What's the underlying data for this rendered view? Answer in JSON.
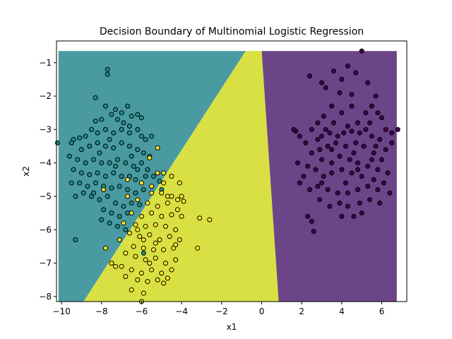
{
  "chart_data": {
    "type": "scatter",
    "title": "Decision Boundary of Multinomial Logistic Regression",
    "xlabel": "x1",
    "ylabel": "x2",
    "xlim": [
      -10.25,
      7.25
    ],
    "ylim": [
      -8.15,
      -0.35
    ],
    "xticks": [
      "−10",
      "−8",
      "−6",
      "−4",
      "−2",
      "0",
      "2",
      "4",
      "6"
    ],
    "xtick_values": [
      -10,
      -8,
      -6,
      -4,
      -2,
      0,
      2,
      4,
      6
    ],
    "yticks": [
      "−1",
      "−2",
      "−3",
      "−4",
      "−5",
      "−6",
      "−7",
      "−8"
    ],
    "ytick_values": [
      -1,
      -2,
      -3,
      -4,
      -5,
      -6,
      -7,
      -8
    ],
    "grid": false,
    "legend": "none",
    "decision_regions": {
      "mesh_x_range": [
        -10.15,
        6.75
      ],
      "mesh_y_range": [
        -8.15,
        -0.65
      ],
      "boundary_teal_yellow": [
        [
          -8.9,
          -8.15
        ],
        [
          -0.8,
          -0.65
        ]
      ],
      "boundary_yellow_purple": [
        [
          0.85,
          -8.15
        ],
        [
          0.0,
          -0.65
        ]
      ],
      "colors": {
        "teal": "#4a9aa2",
        "yellow": "#d8e043",
        "purple": "#6b4587"
      }
    },
    "series": [
      {
        "color": "#440154",
        "points": [
          [
            5.0,
            -0.65
          ],
          [
            2.4,
            -1.4
          ],
          [
            4.3,
            -1.1
          ],
          [
            3.6,
            -1.25
          ],
          [
            4.7,
            -1.3
          ],
          [
            3.0,
            -1.6
          ],
          [
            4.0,
            -1.5
          ],
          [
            3.2,
            -1.75
          ],
          [
            3.9,
            -1.9
          ],
          [
            4.5,
            -1.95
          ],
          [
            5.3,
            -1.6
          ],
          [
            5.7,
            -2.0
          ],
          [
            5.5,
            -2.3
          ],
          [
            5.2,
            -2.5
          ],
          [
            3.5,
            -2.3
          ],
          [
            3.1,
            -2.6
          ],
          [
            4.5,
            -2.3
          ],
          [
            4.0,
            -2.5
          ],
          [
            5.8,
            -2.5
          ],
          [
            6.0,
            -2.65
          ],
          [
            6.2,
            -3.0
          ],
          [
            6.8,
            -3.0
          ],
          [
            6.5,
            -3.1
          ],
          [
            5.4,
            -2.8
          ],
          [
            4.8,
            -2.8
          ],
          [
            4.3,
            -2.9
          ],
          [
            3.6,
            -2.8
          ],
          [
            3.2,
            -3.0
          ],
          [
            2.8,
            -2.8
          ],
          [
            2.5,
            -3.0
          ],
          [
            3.0,
            -3.2
          ],
          [
            3.4,
            -3.1
          ],
          [
            4.1,
            -3.1
          ],
          [
            4.5,
            -3.05
          ],
          [
            4.9,
            -3.1
          ],
          [
            5.5,
            -3.2
          ],
          [
            5.9,
            -3.3
          ],
          [
            6.2,
            -3.6
          ],
          [
            6.0,
            -3.9
          ],
          [
            5.6,
            -3.7
          ],
          [
            5.1,
            -3.5
          ],
          [
            4.7,
            -3.4
          ],
          [
            4.2,
            -3.5
          ],
          [
            3.7,
            -3.4
          ],
          [
            3.3,
            -3.5
          ],
          [
            2.9,
            -3.6
          ],
          [
            2.5,
            -3.7
          ],
          [
            2.2,
            -3.4
          ],
          [
            1.9,
            -3.2
          ],
          [
            1.7,
            -3.05
          ],
          [
            3.0,
            -3.9
          ],
          [
            3.5,
            -4.0
          ],
          [
            3.9,
            -3.8
          ],
          [
            4.4,
            -3.9
          ],
          [
            4.8,
            -4.0
          ],
          [
            5.3,
            -4.1
          ],
          [
            5.8,
            -4.2
          ],
          [
            6.3,
            -4.3
          ],
          [
            6.1,
            -4.6
          ],
          [
            5.6,
            -4.5
          ],
          [
            5.0,
            -4.4
          ],
          [
            4.5,
            -4.3
          ],
          [
            4.0,
            -4.2
          ],
          [
            3.5,
            -4.3
          ],
          [
            3.1,
            -4.4
          ],
          [
            2.7,
            -4.2
          ],
          [
            2.3,
            -4.1
          ],
          [
            2.1,
            -4.4
          ],
          [
            1.9,
            -4.6
          ],
          [
            2.4,
            -4.8
          ],
          [
            2.8,
            -4.7
          ],
          [
            3.3,
            -4.8
          ],
          [
            3.8,
            -4.9
          ],
          [
            4.3,
            -4.9
          ],
          [
            4.8,
            -4.8
          ],
          [
            5.3,
            -4.7
          ],
          [
            5.8,
            -4.8
          ],
          [
            6.4,
            -4.9
          ],
          [
            5.9,
            -5.2
          ],
          [
            5.4,
            -5.1
          ],
          [
            4.9,
            -5.2
          ],
          [
            4.3,
            -5.3
          ],
          [
            3.9,
            -5.2
          ],
          [
            3.4,
            -5.3
          ],
          [
            2.9,
            -5.1
          ],
          [
            4.0,
            -5.6
          ],
          [
            4.6,
            -5.6
          ],
          [
            5.0,
            -5.5
          ],
          [
            2.3,
            -5.6
          ],
          [
            2.5,
            -5.75
          ],
          [
            2.6,
            -6.05
          ],
          [
            1.6,
            -3.0
          ],
          [
            1.8,
            -4.0
          ],
          [
            6.5,
            -3.4
          ],
          [
            5.2,
            -3.0
          ],
          [
            4.6,
            -3.7
          ],
          [
            3.8,
            -3.2
          ],
          [
            3.5,
            -3.6
          ],
          [
            4.2,
            -4.6
          ],
          [
            4.8,
            -4.2
          ],
          [
            5.5,
            -3.9
          ],
          [
            3.0,
            -4.6
          ],
          [
            2.8,
            -3.3
          ],
          [
            5.7,
            -3.5
          ]
        ]
      },
      {
        "color": "#21918c",
        "points": [
          [
            -7.7,
            -1.2
          ],
          [
            -7.7,
            -1.35
          ],
          [
            -8.3,
            -2.05
          ],
          [
            -7.8,
            -2.3
          ],
          [
            -7.3,
            -2.4
          ],
          [
            -7.0,
            -2.5
          ],
          [
            -6.7,
            -2.3
          ],
          [
            -6.5,
            -2.6
          ],
          [
            -6.2,
            -2.55
          ],
          [
            -6.0,
            -2.65
          ],
          [
            -7.5,
            -2.55
          ],
          [
            -7.2,
            -2.7
          ],
          [
            -8.0,
            -2.7
          ],
          [
            -8.3,
            -2.75
          ],
          [
            -8.5,
            -3.0
          ],
          [
            -8.2,
            -3.1
          ],
          [
            -7.8,
            -3.0
          ],
          [
            -7.4,
            -3.1
          ],
          [
            -7.0,
            -3.0
          ],
          [
            -6.6,
            -3.1
          ],
          [
            -6.2,
            -3.0
          ],
          [
            -6.0,
            -3.2
          ],
          [
            -5.8,
            -3.3
          ],
          [
            -8.8,
            -3.2
          ],
          [
            -9.1,
            -3.25
          ],
          [
            -9.4,
            -3.3
          ],
          [
            -9.5,
            -3.4
          ],
          [
            -9.0,
            -3.6
          ],
          [
            -8.6,
            -3.5
          ],
          [
            -8.2,
            -3.4
          ],
          [
            -7.8,
            -3.5
          ],
          [
            -7.4,
            -3.55
          ],
          [
            -7.0,
            -3.4
          ],
          [
            -6.6,
            -3.5
          ],
          [
            -6.2,
            -3.6
          ],
          [
            -5.9,
            -3.7
          ],
          [
            -5.6,
            -3.8
          ],
          [
            -9.6,
            -3.8
          ],
          [
            -9.2,
            -3.9
          ],
          [
            -8.8,
            -4.0
          ],
          [
            -8.4,
            -3.9
          ],
          [
            -8.0,
            -4.0
          ],
          [
            -7.6,
            -4.0
          ],
          [
            -7.2,
            -3.9
          ],
          [
            -6.8,
            -4.0
          ],
          [
            -6.4,
            -4.1
          ],
          [
            -6.0,
            -4.0
          ],
          [
            -5.7,
            -4.2
          ],
          [
            -9.4,
            -4.2
          ],
          [
            -9.0,
            -4.3
          ],
          [
            -8.6,
            -4.35
          ],
          [
            -8.2,
            -4.3
          ],
          [
            -7.8,
            -4.4
          ],
          [
            -7.4,
            -4.3
          ],
          [
            -7.0,
            -4.4
          ],
          [
            -6.6,
            -4.4
          ],
          [
            -6.3,
            -4.5
          ],
          [
            -5.8,
            -4.4
          ],
          [
            -5.4,
            -4.4
          ],
          [
            -9.5,
            -4.6
          ],
          [
            -9.1,
            -4.6
          ],
          [
            -8.7,
            -4.7
          ],
          [
            -8.3,
            -4.6
          ],
          [
            -7.9,
            -4.7
          ],
          [
            -7.5,
            -4.75
          ],
          [
            -7.1,
            -4.7
          ],
          [
            -6.7,
            -4.8
          ],
          [
            -6.3,
            -4.9
          ],
          [
            -5.9,
            -4.8
          ],
          [
            -9.3,
            -5.0
          ],
          [
            -8.9,
            -4.9
          ],
          [
            -8.5,
            -5.0
          ],
          [
            -8.1,
            -5.1
          ],
          [
            -7.7,
            -5.0
          ],
          [
            -7.3,
            -5.2
          ],
          [
            -6.9,
            -5.3
          ],
          [
            -6.5,
            -5.2
          ],
          [
            -6.1,
            -5.25
          ],
          [
            -7.9,
            -5.4
          ],
          [
            -7.5,
            -5.5
          ],
          [
            -7.1,
            -5.6
          ],
          [
            -6.7,
            -5.5
          ],
          [
            -8.0,
            -5.7
          ],
          [
            -7.6,
            -5.8
          ],
          [
            -7.2,
            -5.9
          ],
          [
            -6.8,
            -6.0
          ],
          [
            -9.3,
            -6.3
          ],
          [
            -10.2,
            -3.4
          ],
          [
            -6.5,
            -3.8
          ],
          [
            -7.3,
            -4.1
          ],
          [
            -8.4,
            -4.9
          ],
          [
            -6.6,
            -2.9
          ],
          [
            -5.5,
            -3.2
          ],
          [
            -6.9,
            -2.8
          ],
          [
            -7.6,
            -3.3
          ],
          [
            -8.1,
            -3.7
          ],
          [
            -6.2,
            -4.2
          ],
          [
            -5.1,
            -4.55
          ],
          [
            -5.0,
            -4.8
          ],
          [
            -5.9,
            -6.7
          ]
        ]
      },
      {
        "color": "#fde725",
        "points": [
          [
            -5.2,
            -3.55
          ],
          [
            -5.6,
            -3.85
          ],
          [
            -4.9,
            -4.3
          ],
          [
            -4.5,
            -4.4
          ],
          [
            -4.9,
            -4.6
          ],
          [
            -4.1,
            -4.6
          ],
          [
            -5.5,
            -4.7
          ],
          [
            -5.0,
            -4.9
          ],
          [
            -4.5,
            -5.0
          ],
          [
            -4.0,
            -5.0
          ],
          [
            -3.9,
            -5.15
          ],
          [
            -6.7,
            -5.0
          ],
          [
            -6.2,
            -5.1
          ],
          [
            -5.7,
            -5.2
          ],
          [
            -5.2,
            -5.3
          ],
          [
            -4.7,
            -5.2
          ],
          [
            -4.2,
            -5.4
          ],
          [
            -6.5,
            -5.5
          ],
          [
            -6.0,
            -5.6
          ],
          [
            -5.5,
            -5.5
          ],
          [
            -5.0,
            -5.6
          ],
          [
            -4.5,
            -5.55
          ],
          [
            -4.0,
            -5.6
          ],
          [
            -6.3,
            -5.85
          ],
          [
            -5.8,
            -5.9
          ],
          [
            -5.3,
            -5.85
          ],
          [
            -4.8,
            -5.9
          ],
          [
            -4.3,
            -6.0
          ],
          [
            -6.6,
            -6.1
          ],
          [
            -6.1,
            -6.2
          ],
          [
            -5.6,
            -6.15
          ],
          [
            -5.1,
            -6.3
          ],
          [
            -4.6,
            -6.2
          ],
          [
            -4.1,
            -6.3
          ],
          [
            -6.4,
            -6.5
          ],
          [
            -5.9,
            -6.55
          ],
          [
            -5.4,
            -6.6
          ],
          [
            -4.9,
            -6.6
          ],
          [
            -4.4,
            -6.55
          ],
          [
            -7.8,
            -6.55
          ],
          [
            -6.8,
            -6.7
          ],
          [
            -6.3,
            -6.8
          ],
          [
            -5.8,
            -6.9
          ],
          [
            -5.3,
            -6.85
          ],
          [
            -4.8,
            -7.0
          ],
          [
            -4.3,
            -6.9
          ],
          [
            -7.5,
            -7.0
          ],
          [
            -7.0,
            -7.1
          ],
          [
            -6.5,
            -7.2
          ],
          [
            -6.0,
            -7.3
          ],
          [
            -5.5,
            -7.2
          ],
          [
            -5.0,
            -7.3
          ],
          [
            -4.5,
            -7.2
          ],
          [
            -6.8,
            -7.4
          ],
          [
            -6.2,
            -7.5
          ],
          [
            -5.7,
            -7.55
          ],
          [
            -5.2,
            -7.5
          ],
          [
            -4.7,
            -7.45
          ],
          [
            -6.5,
            -7.8
          ],
          [
            -5.9,
            -7.9
          ],
          [
            -6.0,
            -8.15
          ],
          [
            -3.1,
            -5.65
          ],
          [
            -2.6,
            -5.7
          ],
          [
            -3.2,
            -6.55
          ],
          [
            -4.3,
            -6.45
          ],
          [
            -4.7,
            -5.0
          ],
          [
            -5.2,
            -4.3
          ],
          [
            -7.3,
            -7.1
          ],
          [
            -6.2,
            -6.0
          ],
          [
            -5.6,
            -7.0
          ],
          [
            -4.9,
            -7.6
          ],
          [
            -6.9,
            -5.8
          ],
          [
            -7.1,
            -6.3
          ],
          [
            -5.9,
            -6.3
          ],
          [
            -4.2,
            -5.1
          ],
          [
            -5.3,
            -6.4
          ],
          [
            -6.7,
            -4.5
          ],
          [
            -7.9,
            -4.8
          ],
          [
            -6.0,
            -4.6
          ],
          [
            -5.5,
            -4.9
          ]
        ]
      }
    ]
  }
}
